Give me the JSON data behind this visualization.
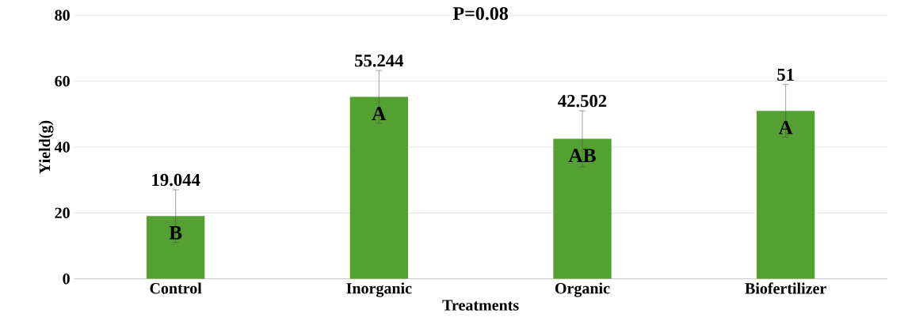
{
  "chart_data": {
    "type": "bar",
    "title": "P=0.08",
    "xlabel": "Treatments",
    "ylabel": "Yield(g)",
    "categories": [
      "Control",
      "Inorganic",
      "Organic",
      "Biofertilizer"
    ],
    "values": [
      19.044,
      55.244,
      42.502,
      51
    ],
    "errors": [
      8,
      8,
      8.5,
      8
    ],
    "color": "#55a033",
    "ylim": [
      0,
      80
    ],
    "yticks": [
      0,
      20,
      40,
      60,
      80
    ],
    "grid": "y",
    "data_labels": true,
    "annotations": [
      "B",
      "A",
      "AB",
      "A"
    ]
  }
}
